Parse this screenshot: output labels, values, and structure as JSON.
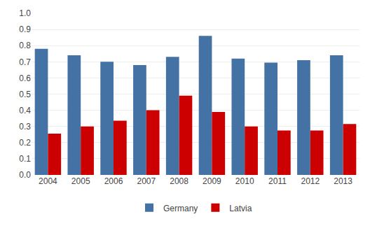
{
  "chart_data": {
    "type": "bar",
    "categories": [
      "2004",
      "2005",
      "2006",
      "2007",
      "2008",
      "2009",
      "2010",
      "2011",
      "2012",
      "2013"
    ],
    "series": [
      {
        "name": "Germany",
        "color": "#4472A4",
        "values": [
          0.78,
          0.74,
          0.7,
          0.68,
          0.73,
          0.86,
          0.72,
          0.695,
          0.71,
          0.74
        ]
      },
      {
        "name": "Latvia",
        "color": "#CC0000",
        "values": [
          0.255,
          0.3,
          0.335,
          0.4,
          0.49,
          0.39,
          0.3,
          0.275,
          0.275,
          0.315
        ]
      }
    ],
    "ylim": [
      0.0,
      1.0
    ],
    "yticks": [
      {
        "value": 0,
        "label": "0.0"
      },
      0.1,
      0.2,
      0.3,
      0.4,
      0.5,
      0.6,
      0.7,
      0.8,
      0.9,
      {
        "value": 1,
        "label": "1.0"
      }
    ],
    "grid": true,
    "legend": "bottom"
  }
}
